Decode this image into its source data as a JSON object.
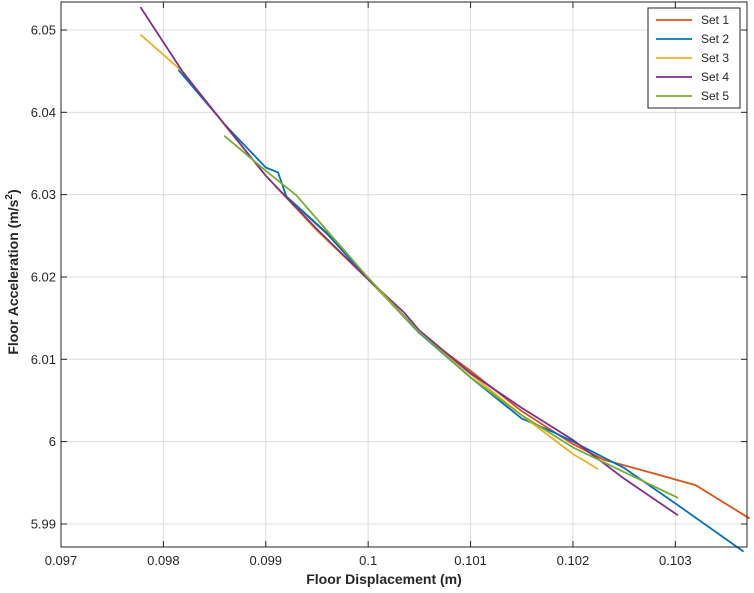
{
  "chart_data": {
    "type": "line",
    "title": "",
    "xlabel": "Floor Displacement (m)",
    "ylabel_main": "Floor Acceleration (m/s",
    "ylabel_sup": "2",
    "ylabel_close": ")",
    "xlim": [
      0.097,
      0.1037
    ],
    "ylim": [
      5.9872,
      6.0534
    ],
    "xticks": [
      0.097,
      0.098,
      0.099,
      0.1,
      0.101,
      0.102,
      0.103
    ],
    "xtick_labels": [
      "0.097",
      "0.098",
      "0.099",
      "0.1",
      "0.101",
      "0.102",
      "0.103"
    ],
    "yticks": [
      5.99,
      6.0,
      6.01,
      6.02,
      6.03,
      6.04,
      6.05
    ],
    "ytick_labels": [
      "5.99",
      "6",
      "6.01",
      "6.02",
      "6.03",
      "6.04",
      "6.05"
    ],
    "grid": true,
    "legend_position": "top-right",
    "series": [
      {
        "name": "Set 1",
        "color": "#D95319",
        "x": [
          0.0991,
          0.0996,
          0.1,
          0.1005,
          0.101,
          0.1015,
          0.102,
          0.1023,
          0.1028,
          0.1032,
          0.10372
        ],
        "y": [
          6.0309,
          6.0252,
          6.0198,
          6.0132,
          6.0086,
          6.0037,
          5.9997,
          5.9978,
          5.9961,
          5.9947,
          5.9907
        ]
      },
      {
        "name": "Set 2",
        "color": "#0072BD",
        "x": [
          0.09815,
          0.0986,
          0.099,
          0.09912,
          0.0992,
          0.0996,
          0.1,
          0.1005,
          0.101,
          0.1015,
          0.1018,
          0.102,
          0.1025,
          0.103,
          0.10366
        ],
        "y": [
          6.0451,
          6.0385,
          6.0333,
          6.0327,
          6.0298,
          6.0253,
          6.0197,
          6.0132,
          6.0078,
          6.0028,
          6.0012,
          6.0,
          5.9968,
          5.9925,
          5.9867
        ]
      },
      {
        "name": "Set 3",
        "color": "#EDB120",
        "x": [
          0.09778,
          0.0982,
          0.0986,
          0.099,
          0.0995,
          0.1,
          0.1005,
          0.101,
          0.1015,
          0.102,
          0.10224
        ],
        "y": [
          6.0494,
          6.0448,
          6.0384,
          6.0323,
          6.0256,
          6.0197,
          6.0133,
          6.0082,
          6.0032,
          5.9985,
          5.9967
        ]
      },
      {
        "name": "Set 4",
        "color": "#7E2F8E",
        "x": [
          0.09778,
          0.0982,
          0.0986,
          0.099,
          0.0995,
          0.1,
          0.10035,
          0.1005,
          0.101,
          0.1015,
          0.102,
          0.1025,
          0.10302
        ],
        "y": [
          6.0527,
          6.0447,
          6.0385,
          6.0323,
          6.0258,
          6.0197,
          6.0157,
          6.0135,
          6.0083,
          6.0041,
          6.0002,
          5.9955,
          5.9911
        ]
      },
      {
        "name": "Set 5",
        "color": "#77AC30",
        "x": [
          0.0986,
          0.099,
          0.0993,
          0.0996,
          0.1,
          0.1005,
          0.101,
          0.1015,
          0.102,
          0.1025,
          0.10302
        ],
        "y": [
          6.0371,
          6.0329,
          6.0299,
          6.0256,
          6.0199,
          6.0133,
          6.0078,
          6.0032,
          5.9993,
          5.9963,
          5.9932
        ]
      }
    ]
  }
}
